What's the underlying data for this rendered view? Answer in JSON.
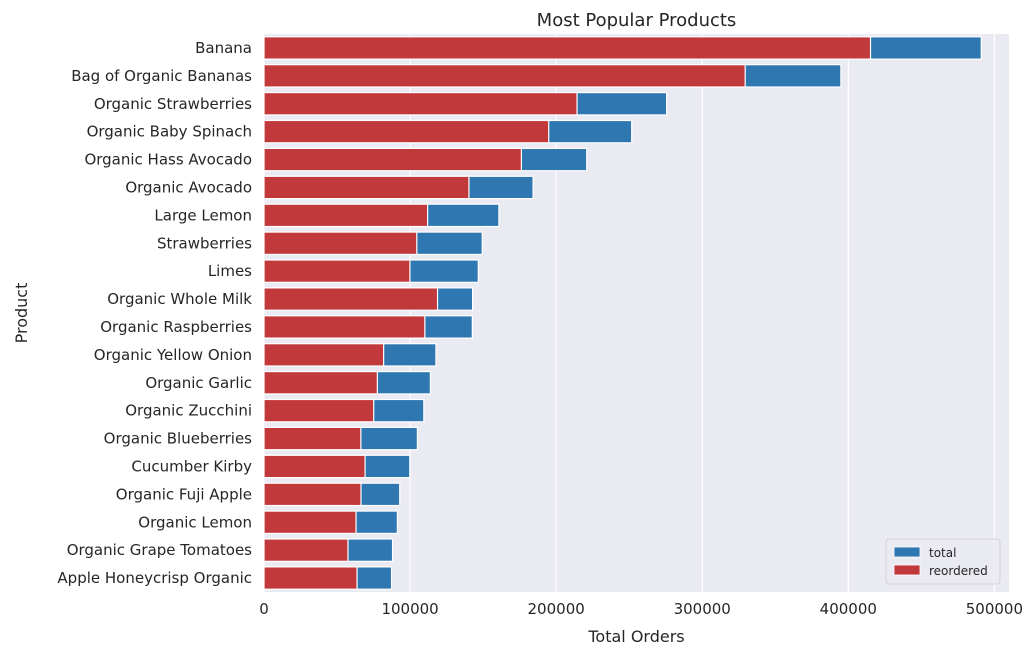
{
  "chart_data": {
    "type": "bar",
    "orientation": "horizontal",
    "stacked_overlay": true,
    "title": "Most Popular Products",
    "xlabel": "Total Orders",
    "ylabel": "Product",
    "xlim": [
      0,
      510000
    ],
    "xticks": [
      0,
      100000,
      200000,
      300000,
      400000,
      500000
    ],
    "xtick_labels": [
      "0",
      "100000",
      "200000",
      "300000",
      "400000",
      "500000"
    ],
    "grid": true,
    "legend_position": "lower-right",
    "categories": [
      "Banana",
      "Bag of Organic Bananas",
      "Organic Strawberries",
      "Organic Baby Spinach",
      "Organic Hass Avocado",
      "Organic Avocado",
      "Large Lemon",
      "Strawberries",
      "Limes",
      "Organic Whole Milk",
      "Organic Raspberries",
      "Organic Yellow Onion",
      "Organic Garlic",
      "Organic Zucchini",
      "Organic Blueberries",
      "Cucumber Kirby",
      "Organic Fuji Apple",
      "Organic Lemon",
      "Organic Grape Tomatoes",
      "Apple Honeycrisp Organic"
    ],
    "series": [
      {
        "name": "total",
        "color": "#2e77b0",
        "values": [
          491000,
          394900,
          275600,
          251700,
          220900,
          184200,
          160800,
          149400,
          146700,
          142800,
          142600,
          117700,
          113900,
          109400,
          105000,
          99800,
          92900,
          91300,
          88000,
          87300
        ]
      },
      {
        "name": "reordered",
        "color": "#c2393c",
        "values": [
          415200,
          329400,
          214300,
          194900,
          176200,
          140300,
          112000,
          104600,
          99900,
          118800,
          110100,
          81900,
          77600,
          75100,
          66300,
          69200,
          66400,
          63000,
          57500,
          63700
        ]
      }
    ]
  }
}
